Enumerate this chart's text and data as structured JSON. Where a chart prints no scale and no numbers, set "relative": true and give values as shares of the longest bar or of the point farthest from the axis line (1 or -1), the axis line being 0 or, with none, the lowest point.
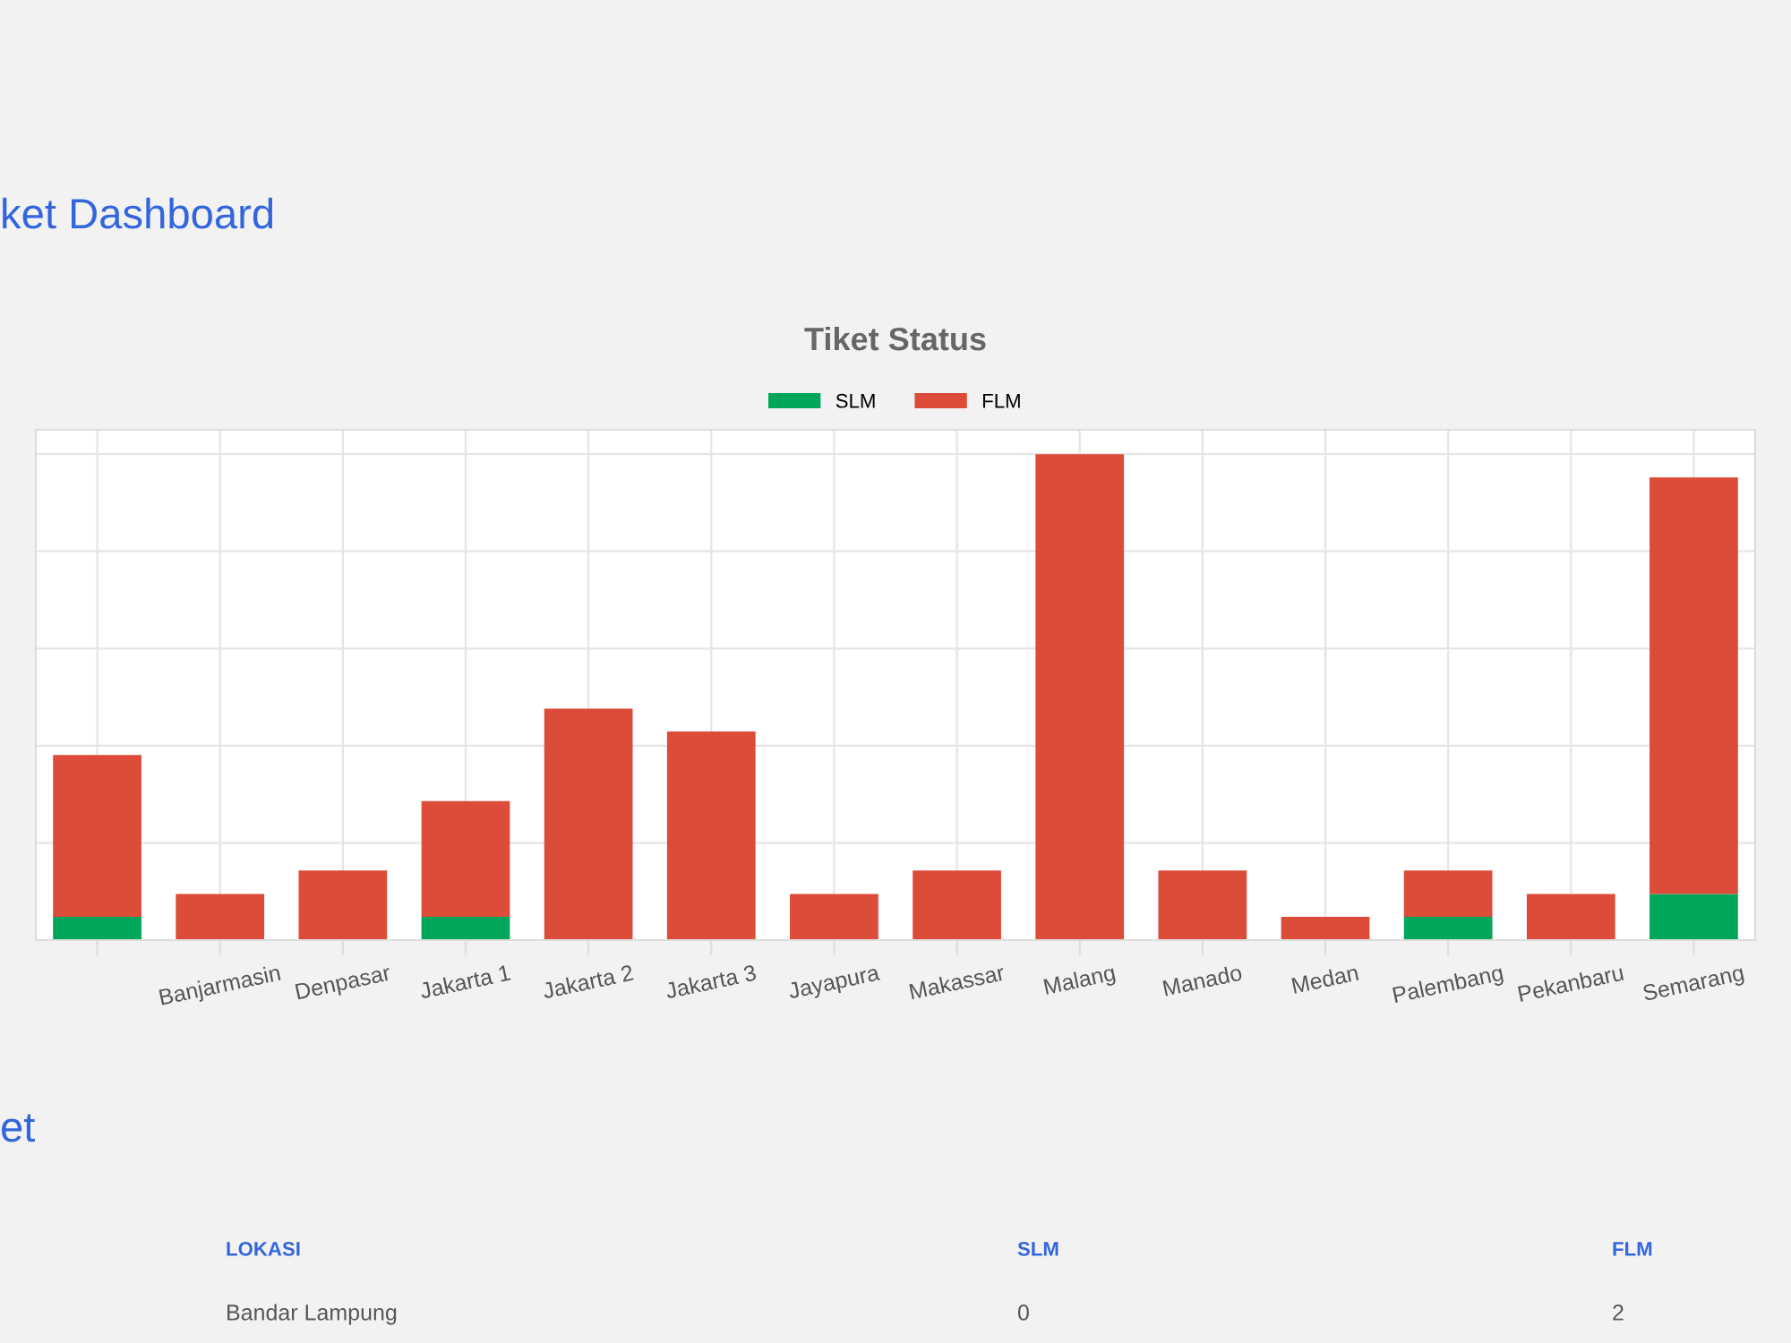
{
  "chart_data": {
    "type": "bar",
    "title": "Tiket Status",
    "relative": true,
    "stacked": true,
    "grid": true,
    "legend": "top",
    "categories": [
      null,
      "Banjarmasin",
      "Denpasar",
      "Jakarta 1",
      "Jakarta 2",
      "Jakarta 3",
      "Jayapura",
      "Makassar",
      "Malang",
      "Manado",
      "Medan",
      "Palembang",
      "Pekanbaru",
      "Semarang"
    ],
    "series": [
      {
        "name": "SLM",
        "color": "#00a65a",
        "values": [
          0.048,
          0,
          0,
          0.048,
          0,
          0,
          0,
          0,
          0,
          0,
          0,
          0.048,
          0,
          0.095
        ]
      },
      {
        "name": "FLM",
        "color": "#dd4b39",
        "values": [
          0.333,
          0.095,
          0.143,
          0.238,
          0.476,
          0.429,
          0.095,
          0.143,
          1,
          0.143,
          0.048,
          0.095,
          0.095,
          0.857
        ]
      }
    ],
    "annotations": [
      "ket Dashboard",
      "et",
      "LOKASI",
      "SLM",
      "FLM",
      "Bandar Lampung",
      "0",
      "2"
    ]
  }
}
